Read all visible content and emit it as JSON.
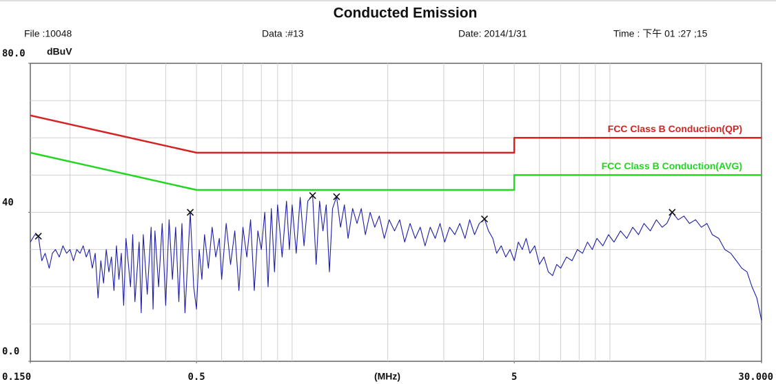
{
  "chart_data": {
    "type": "line",
    "title": "Conducted Emission",
    "header": {
      "file": "File :10048",
      "data": "Data :#13",
      "date": "Date: 2014/1/31",
      "time": "Time : 下午 01 :27 ;15"
    },
    "y_label": "dBuV",
    "x_label": "(MHz)",
    "xlog": true,
    "xlim": [
      0.15,
      30
    ],
    "ylim": [
      0,
      80
    ],
    "xticks": [
      {
        "value": 0.15,
        "label": "0.150"
      },
      0.5,
      5,
      {
        "value": 30,
        "label": "30.000"
      }
    ],
    "yticks": [
      {
        "value": 80,
        "label": "80.0"
      },
      40,
      {
        "value": 0,
        "label": "0.0"
      }
    ],
    "xgrid": [
      0.2,
      0.3,
      0.4,
      0.5,
      0.6,
      0.7,
      0.8,
      0.9,
      1,
      2,
      3,
      4,
      5,
      6,
      7,
      8,
      9,
      10,
      20
    ],
    "ygrid": [
      10,
      20,
      30,
      40,
      50,
      60,
      70
    ],
    "series": [
      {
        "name": "FCC Class B Conduction(QP)",
        "color": "#d42323",
        "x": [
          0.15,
          0.5,
          5,
          5,
          30
        ],
        "values": [
          66,
          56,
          56,
          60,
          60
        ]
      },
      {
        "name": "FCC Class B Conduction(AVG)",
        "color": "#22d622",
        "x": [
          0.15,
          0.5,
          5,
          5,
          30
        ],
        "values": [
          56,
          46,
          46,
          50,
          50
        ]
      },
      {
        "color": "#1c1ca8",
        "x": [
          0.15,
          0.155,
          0.159,
          0.163,
          0.167,
          0.172,
          0.176,
          0.18,
          0.185,
          0.19,
          0.195,
          0.2,
          0.205,
          0.21,
          0.215,
          0.22,
          0.225,
          0.23,
          0.235,
          0.24,
          0.245,
          0.25,
          0.255,
          0.26,
          0.265,
          0.27,
          0.275,
          0.28,
          0.285,
          0.29,
          0.295,
          0.3,
          0.31,
          0.315,
          0.32,
          0.33,
          0.335,
          0.34,
          0.35,
          0.36,
          0.365,
          0.37,
          0.38,
          0.39,
          0.4,
          0.41,
          0.42,
          0.43,
          0.44,
          0.45,
          0.46,
          0.478,
          0.49,
          0.5,
          0.51,
          0.52,
          0.53,
          0.545,
          0.56,
          0.575,
          0.59,
          0.6,
          0.62,
          0.64,
          0.66,
          0.68,
          0.7,
          0.72,
          0.74,
          0.76,
          0.78,
          0.8,
          0.82,
          0.84,
          0.86,
          0.88,
          0.9,
          0.93,
          0.96,
          0.98,
          1.0,
          1.03,
          1.06,
          1.09,
          1.12,
          1.16,
          1.19,
          1.22,
          1.25,
          1.28,
          1.31,
          1.34,
          1.38,
          1.42,
          1.46,
          1.5,
          1.55,
          1.6,
          1.65,
          1.7,
          1.76,
          1.82,
          1.88,
          1.95,
          2.02,
          2.1,
          2.18,
          2.26,
          2.35,
          2.44,
          2.53,
          2.62,
          2.72,
          2.82,
          2.92,
          3.02,
          3.13,
          3.25,
          3.37,
          3.5,
          3.62,
          3.75,
          3.88,
          4.03,
          4.15,
          4.28,
          4.4,
          4.55,
          4.7,
          4.85,
          5.0,
          5.15,
          5.3,
          5.45,
          5.6,
          5.8,
          6.0,
          6.2,
          6.4,
          6.6,
          6.8,
          7.0,
          7.3,
          7.6,
          7.9,
          8.2,
          8.5,
          8.8,
          9.1,
          9.5,
          9.9,
          10.3,
          10.8,
          11.3,
          11.8,
          12.3,
          12.8,
          13.4,
          14.0,
          14.6,
          15.1,
          15.7,
          16.4,
          17.1,
          17.8,
          18.6,
          19.4,
          20.2,
          21.0,
          22.0,
          23.0,
          24.0,
          25.0,
          26.0,
          27.0,
          28.0,
          29.0,
          30.0
        ],
        "values": [
          32,
          34,
          33.6,
          27,
          29,
          25,
          29,
          30,
          28,
          31,
          29,
          30,
          27,
          30,
          29,
          31,
          28,
          30,
          25,
          29,
          17,
          27,
          21,
          30,
          24,
          28,
          19,
          31,
          22,
          29,
          15,
          33,
          20,
          34,
          16,
          32,
          13,
          34,
          18,
          36,
          14,
          35,
          20,
          37,
          15,
          38,
          22,
          36,
          16,
          37,
          13,
          40,
          20,
          14,
          30,
          22,
          34,
          25,
          36,
          28,
          33,
          22,
          37,
          26,
          35,
          19,
          36,
          28,
          38,
          19,
          35,
          30,
          40,
          20,
          41,
          24,
          42,
          28,
          43,
          30,
          42,
          29,
          44,
          31,
          43,
          44.5,
          26,
          43,
          35,
          42,
          24,
          41,
          44.2,
          36,
          42,
          33,
          41,
          37,
          41,
          34,
          40,
          36,
          39,
          33,
          38,
          35,
          38,
          32,
          37,
          33,
          36,
          31,
          36,
          33,
          37,
          32,
          36,
          34,
          37,
          33,
          38,
          34,
          37,
          38.2,
          35,
          33,
          29,
          31,
          28,
          30,
          27,
          32,
          30,
          33,
          29,
          31,
          26,
          28,
          24,
          23,
          26,
          25,
          28,
          27,
          30,
          29,
          32,
          30,
          33,
          31,
          34,
          32,
          35,
          33,
          36,
          34,
          37,
          35,
          38,
          36,
          37,
          40,
          38,
          39,
          37,
          38,
          36,
          37,
          34,
          33,
          30,
          29,
          27,
          25,
          24,
          20,
          17,
          11
        ]
      }
    ],
    "markers": {
      "x": [
        0.159,
        0.478,
        1.16,
        1.38,
        4.03,
        15.7
      ],
      "values": [
        33.6,
        40,
        44.5,
        44.2,
        38.2,
        40
      ]
    }
  }
}
